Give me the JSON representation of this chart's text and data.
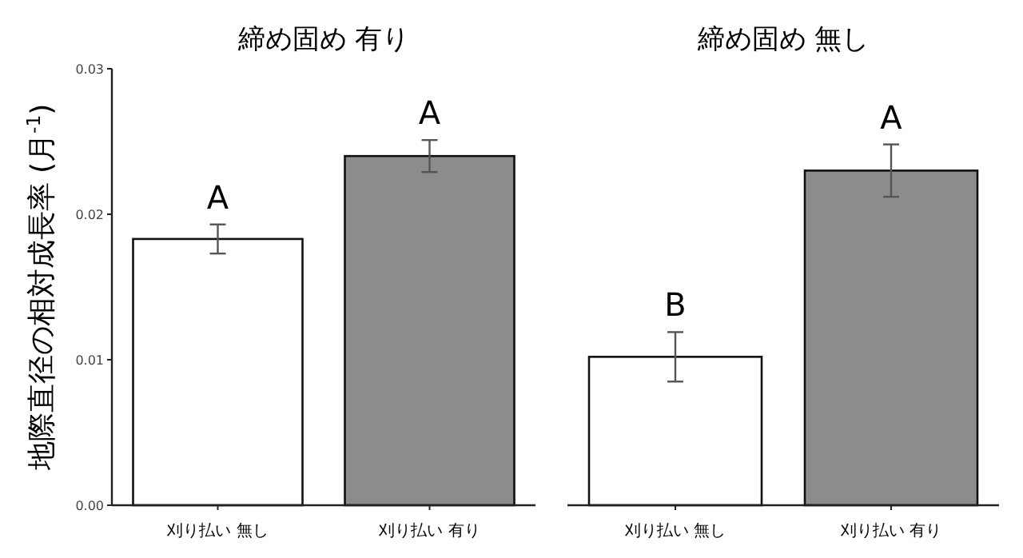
{
  "chart_data": [
    {
      "type": "bar",
      "title": "締め固め 有り",
      "ylabel": "地際直径の相対成長率 (月$^{-1}$)",
      "categories": [
        "刈り払い 無し",
        "刈り払い 有り"
      ],
      "values": [
        0.0183,
        0.024
      ],
      "errors": [
        0.001,
        0.0011
      ],
      "colors": [
        "#ffffff",
        "#8c8c8c"
      ],
      "ylim": [
        0,
        0.03
      ],
      "yticks": [
        {
          "value": 0,
          "label": "0.00"
        },
        {
          "value": 0.01,
          "label": "0.01"
        },
        {
          "value": 0.02,
          "label": "0.02"
        },
        {
          "value": 0.03,
          "label": "0.03"
        }
      ],
      "annotations": [
        "A",
        "A"
      ]
    },
    {
      "type": "bar",
      "title": "締め固め 無し",
      "categories": [
        "刈り払い 無し",
        "刈り払い 有り"
      ],
      "values": [
        0.0102,
        0.023
      ],
      "errors": [
        0.0017,
        0.0018
      ],
      "colors": [
        "#ffffff",
        "#8c8c8c"
      ],
      "ylim": [
        0,
        0.03
      ],
      "tick_labels": "x",
      "annotations": [
        "B",
        "A"
      ]
    }
  ]
}
